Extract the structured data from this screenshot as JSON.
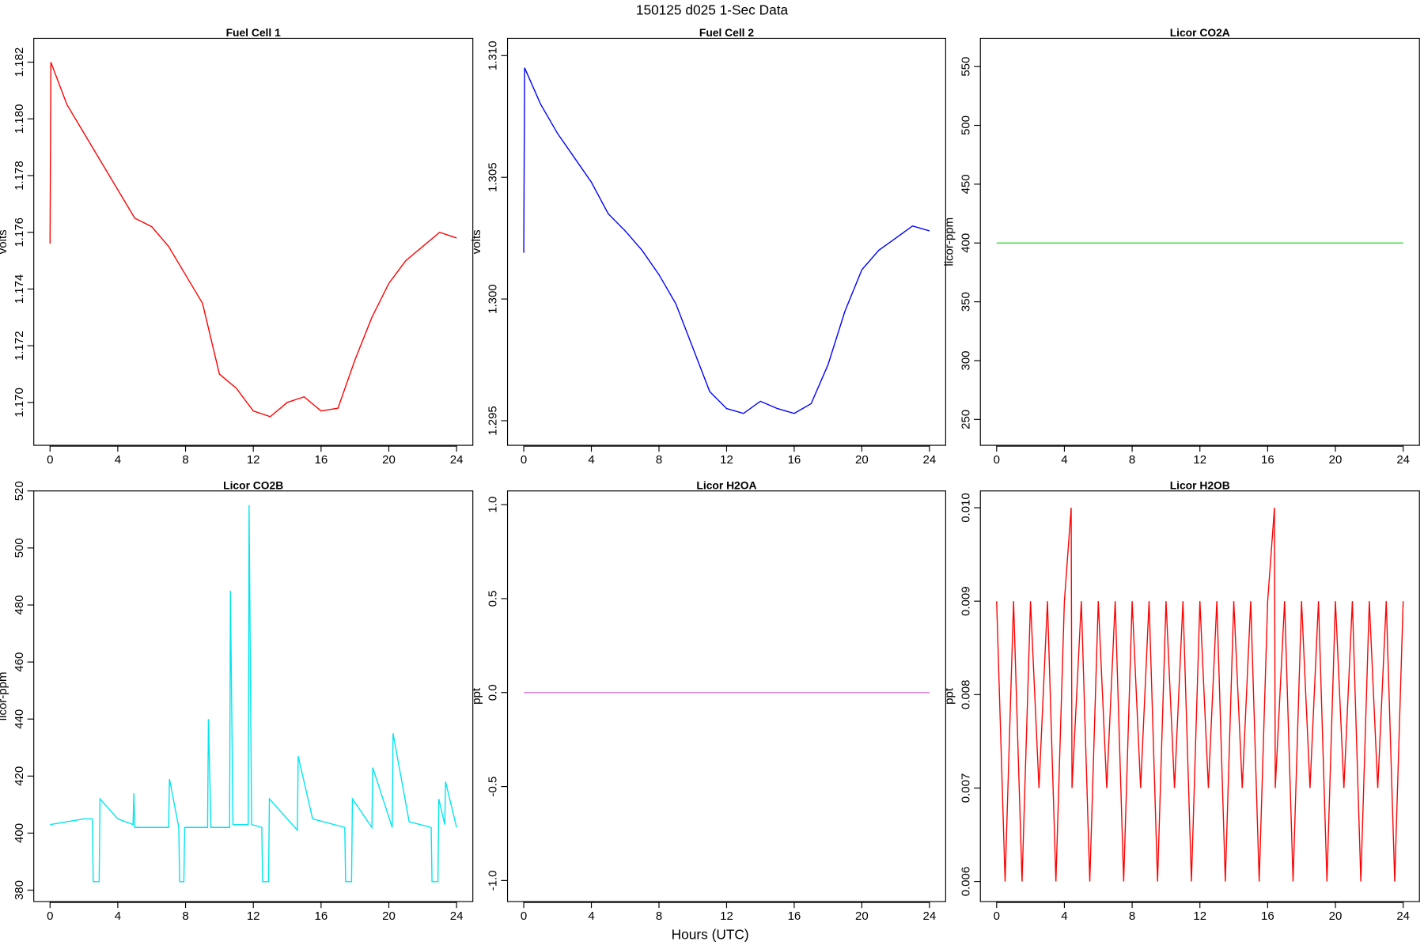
{
  "title": "150125   d025   1-Sec Data",
  "xlabel": "Hours (UTC)",
  "chart_data": [
    {
      "type": "line",
      "title": "Fuel Cell 1",
      "ylabel": "volts",
      "color": "#ff0000",
      "x": [
        0,
        0.05,
        1,
        2,
        3,
        4,
        5,
        6,
        7,
        8,
        9,
        10,
        11,
        12,
        13,
        14,
        15,
        16,
        17,
        18,
        19,
        20,
        21,
        22,
        23,
        24
      ],
      "values": [
        1.1756,
        1.182,
        1.1805,
        1.1795,
        1.1785,
        1.1775,
        1.1765,
        1.1762,
        1.1755,
        1.1745,
        1.1735,
        1.171,
        1.1705,
        1.1697,
        1.1695,
        1.17,
        1.1702,
        1.1697,
        1.1698,
        1.1715,
        1.173,
        1.1742,
        1.175,
        1.1755,
        1.176,
        1.1758
      ],
      "xlim": [
        -0.96,
        24.96
      ],
      "xticks": [
        0,
        4,
        8,
        12,
        16,
        20,
        24
      ],
      "ylim": [
        1.16849,
        1.18284
      ],
      "yticks": [
        {
          "value": 1.17,
          "label": "1.170"
        },
        1.172,
        1.174,
        1.176,
        1.178,
        {
          "value": 1.18,
          "label": "1.180"
        },
        1.182
      ]
    },
    {
      "type": "line",
      "title": "Fuel Cell 2",
      "ylabel": "volts",
      "color": "#0000ff",
      "x": [
        0,
        0.05,
        1,
        2,
        3,
        4,
        5,
        6,
        7,
        8,
        9,
        10,
        11,
        12,
        13,
        14,
        15,
        16,
        17,
        18,
        19,
        20,
        21,
        22,
        23,
        24
      ],
      "values": [
        1.3019,
        1.3095,
        1.308,
        1.3068,
        1.3058,
        1.3048,
        1.3035,
        1.3028,
        1.302,
        1.301,
        1.2998,
        1.298,
        1.2962,
        1.2955,
        1.2953,
        1.2958,
        1.2955,
        1.2953,
        1.2957,
        1.2973,
        1.2995,
        1.3012,
        1.302,
        1.3025,
        1.303,
        1.3028
      ],
      "xlim": [
        -0.96,
        24.96
      ],
      "xticks": [
        0,
        4,
        8,
        12,
        16,
        20,
        24
      ],
      "ylim": [
        1.29399,
        1.31071
      ],
      "yticks": [
        1.295,
        {
          "value": 1.3,
          "label": "1.300"
        },
        1.305,
        {
          "value": 1.31,
          "label": "1.310"
        }
      ]
    },
    {
      "type": "line",
      "title": "Licor CO2A",
      "ylabel": "licor-ppm",
      "color": "#33dd33",
      "x": [
        0,
        24
      ],
      "values": [
        400,
        400
      ],
      "xlim": [
        -0.96,
        24.96
      ],
      "xticks": [
        0,
        4,
        8,
        12,
        16,
        20,
        24
      ],
      "ylim": [
        228,
        574
      ],
      "yticks": [
        250,
        300,
        350,
        400,
        450,
        500,
        550
      ]
    },
    {
      "type": "line",
      "title": "Licor CO2B",
      "ylabel": "licor-ppm",
      "color": "#00e5ee",
      "x": [
        0,
        1,
        2,
        2.5,
        2.55,
        2.9,
        2.95,
        4,
        4.9,
        4.95,
        5,
        7,
        7.05,
        7.6,
        7.65,
        7.9,
        7.95,
        9.3,
        9.35,
        9.5,
        10.6,
        10.65,
        10.8,
        11.7,
        11.75,
        11.9,
        12.5,
        12.55,
        12.9,
        12.95,
        14.6,
        14.65,
        15.5,
        17.4,
        17.45,
        17.8,
        17.85,
        19,
        19.05,
        20.2,
        20.25,
        21.2,
        22.5,
        22.55,
        22.9,
        22.95,
        23.3,
        23.35,
        24
      ],
      "values": [
        403,
        404,
        405,
        405,
        383,
        383,
        412,
        405,
        403,
        414,
        402,
        402,
        419,
        402,
        383,
        383,
        402,
        402,
        440,
        402,
        402,
        485,
        403,
        403,
        515,
        403,
        402,
        383,
        383,
        412,
        401,
        427,
        405,
        402,
        383,
        383,
        412,
        402,
        423,
        402,
        435,
        404,
        402,
        383,
        383,
        412,
        403,
        418,
        402
      ],
      "xlim": [
        -0.96,
        24.96
      ],
      "xticks": [
        0,
        4,
        8,
        12,
        16,
        20,
        24
      ],
      "ylim": [
        376,
        520
      ],
      "yticks": [
        380,
        400,
        420,
        440,
        460,
        480,
        500,
        520
      ]
    },
    {
      "type": "line",
      "title": "Licor H2OA",
      "ylabel": "ppt",
      "color": "#dd88dd",
      "x": [
        0,
        24
      ],
      "values": [
        0,
        0
      ],
      "xlim": [
        -0.96,
        24.96
      ],
      "xticks": [
        0,
        4,
        8,
        12,
        16,
        20,
        24
      ],
      "ylim": [
        -1.112,
        1.073
      ],
      "yticks": [
        {
          "value": -1,
          "label": "-1.0"
        },
        -0.5,
        {
          "value": 0,
          "label": "0.0"
        },
        0.5,
        {
          "value": 1,
          "label": "1.0"
        }
      ]
    },
    {
      "type": "line",
      "title": "Licor H2OB",
      "ylabel": "ppt",
      "color": "#ff0000",
      "x": [
        0,
        0.5,
        1,
        1.5,
        2,
        2.5,
        3,
        3.5,
        4,
        4.4,
        4.45,
        5,
        5.5,
        6,
        6.5,
        7,
        7.5,
        8,
        8.5,
        9,
        9.5,
        10,
        10.5,
        11,
        11.5,
        12,
        12.5,
        13,
        13.5,
        14,
        14.5,
        15,
        15.5,
        16,
        16.4,
        16.45,
        17,
        17.5,
        18,
        18.5,
        19,
        19.5,
        20,
        20.5,
        21,
        21.5,
        22,
        22.5,
        23,
        23.5,
        24
      ],
      "values": [
        0.009,
        0.006,
        0.009,
        0.006,
        0.009,
        0.007,
        0.009,
        0.006,
        0.009,
        0.01,
        0.007,
        0.009,
        0.006,
        0.009,
        0.007,
        0.009,
        0.006,
        0.009,
        0.007,
        0.009,
        0.006,
        0.009,
        0.007,
        0.009,
        0.006,
        0.009,
        0.007,
        0.009,
        0.006,
        0.009,
        0.007,
        0.009,
        0.006,
        0.009,
        0.01,
        0.007,
        0.009,
        0.006,
        0.009,
        0.007,
        0.009,
        0.006,
        0.009,
        0.007,
        0.009,
        0.006,
        0.009,
        0.007,
        0.009,
        0.006,
        0.009
      ],
      "xlim": [
        -0.96,
        24.96
      ],
      "xticks": [
        0,
        4,
        8,
        12,
        16,
        20,
        24
      ],
      "ylim": [
        0.005785,
        0.01018
      ],
      "yticks": [
        0.006,
        0.007,
        0.008,
        0.009,
        {
          "value": 0.01,
          "label": "0.010"
        }
      ]
    }
  ]
}
